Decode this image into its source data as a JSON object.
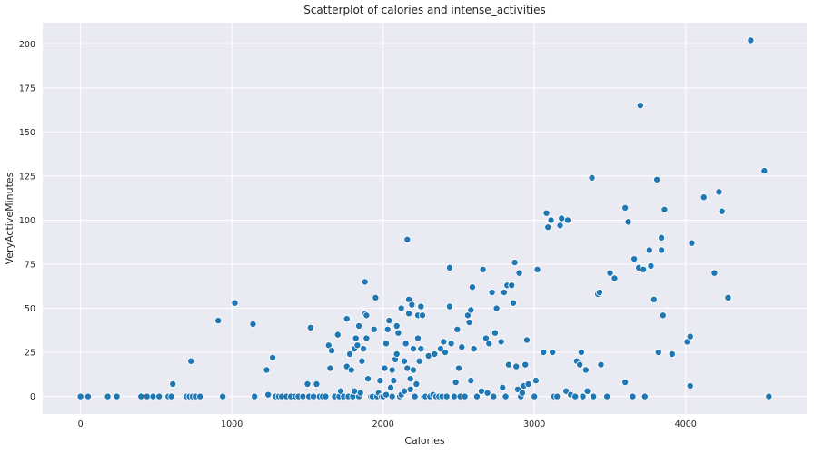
{
  "chart_data": {
    "type": "scatter",
    "title": "Scatterplot of calories and intense_activities",
    "xlabel": "Calories",
    "ylabel": "VeryActiveMinutes",
    "xlim": [
      -250,
      4800
    ],
    "ylim": [
      -10,
      212
    ],
    "x_ticks": [
      0,
      1000,
      2000,
      3000,
      4000
    ],
    "y_ticks": [
      0,
      25,
      50,
      75,
      100,
      125,
      150,
      175,
      200
    ],
    "grid": true,
    "style": {
      "background": "#EAEAF2",
      "grid_color": "#FFFFFF",
      "marker_color": "#1F77B4",
      "marker_edge": "#FFFFFF"
    },
    "points": [
      [
        0,
        0
      ],
      [
        50,
        0
      ],
      [
        180,
        0
      ],
      [
        240,
        0
      ],
      [
        400,
        0
      ],
      [
        440,
        0
      ],
      [
        480,
        0
      ],
      [
        520,
        0
      ],
      [
        580,
        0
      ],
      [
        600,
        0
      ],
      [
        610,
        7
      ],
      [
        700,
        0
      ],
      [
        720,
        0
      ],
      [
        740,
        0
      ],
      [
        760,
        0
      ],
      [
        790,
        0
      ],
      [
        730,
        20
      ],
      [
        910,
        43
      ],
      [
        940,
        0
      ],
      [
        1020,
        53
      ],
      [
        1140,
        41
      ],
      [
        1150,
        0
      ],
      [
        1230,
        15
      ],
      [
        1240,
        1
      ],
      [
        1270,
        22
      ],
      [
        1290,
        0
      ],
      [
        1310,
        0
      ],
      [
        1330,
        0
      ],
      [
        1360,
        0
      ],
      [
        1390,
        0
      ],
      [
        1420,
        0
      ],
      [
        1440,
        0
      ],
      [
        1470,
        0
      ],
      [
        1500,
        7
      ],
      [
        1510,
        0
      ],
      [
        1520,
        39
      ],
      [
        1540,
        0
      ],
      [
        1560,
        7
      ],
      [
        1580,
        0
      ],
      [
        1600,
        0
      ],
      [
        1620,
        0
      ],
      [
        1640,
        29
      ],
      [
        1650,
        16
      ],
      [
        1660,
        26
      ],
      [
        1680,
        0
      ],
      [
        1700,
        35
      ],
      [
        1710,
        0
      ],
      [
        1720,
        3
      ],
      [
        1740,
        0
      ],
      [
        1760,
        17
      ],
      [
        1760,
        44
      ],
      [
        1770,
        0
      ],
      [
        1780,
        24
      ],
      [
        1790,
        15
      ],
      [
        1800,
        0
      ],
      [
        1810,
        3
      ],
      [
        1810,
        27
      ],
      [
        1820,
        33
      ],
      [
        1830,
        29
      ],
      [
        1840,
        0
      ],
      [
        1840,
        40
      ],
      [
        1850,
        2
      ],
      [
        1860,
        20
      ],
      [
        1870,
        27
      ],
      [
        1880,
        65
      ],
      [
        1880,
        47
      ],
      [
        1890,
        46
      ],
      [
        1890,
        33
      ],
      [
        1900,
        10
      ],
      [
        1920,
        0
      ],
      [
        1930,
        0
      ],
      [
        1940,
        38
      ],
      [
        1950,
        56
      ],
      [
        1960,
        0
      ],
      [
        1970,
        2
      ],
      [
        1980,
        9
      ],
      [
        1990,
        0
      ],
      [
        2000,
        0
      ],
      [
        2010,
        16
      ],
      [
        2020,
        1
      ],
      [
        2020,
        30
      ],
      [
        2030,
        38
      ],
      [
        2040,
        43
      ],
      [
        2050,
        5
      ],
      [
        2060,
        0
      ],
      [
        2060,
        15
      ],
      [
        2070,
        9
      ],
      [
        2080,
        21
      ],
      [
        2090,
        24
      ],
      [
        2090,
        40
      ],
      [
        2100,
        36
      ],
      [
        2110,
        0
      ],
      [
        2120,
        1
      ],
      [
        2120,
        50
      ],
      [
        2140,
        3
      ],
      [
        2140,
        20
      ],
      [
        2150,
        30
      ],
      [
        2160,
        89
      ],
      [
        2160,
        16
      ],
      [
        2170,
        47
      ],
      [
        2170,
        55
      ],
      [
        2180,
        10
      ],
      [
        2180,
        4
      ],
      [
        2190,
        52
      ],
      [
        2200,
        27
      ],
      [
        2200,
        15
      ],
      [
        2210,
        0
      ],
      [
        2220,
        7
      ],
      [
        2230,
        46
      ],
      [
        2230,
        33
      ],
      [
        2240,
        20
      ],
      [
        2250,
        27
      ],
      [
        2250,
        51
      ],
      [
        2260,
        46
      ],
      [
        2270,
        0
      ],
      [
        2280,
        0
      ],
      [
        2300,
        23
      ],
      [
        2310,
        0
      ],
      [
        2330,
        1
      ],
      [
        2340,
        24
      ],
      [
        2350,
        0
      ],
      [
        2370,
        0
      ],
      [
        2380,
        27
      ],
      [
        2390,
        0
      ],
      [
        2400,
        31
      ],
      [
        2410,
        25
      ],
      [
        2420,
        0
      ],
      [
        2440,
        51
      ],
      [
        2440,
        73
      ],
      [
        2450,
        30
      ],
      [
        2470,
        0
      ],
      [
        2480,
        8
      ],
      [
        2490,
        38
      ],
      [
        2500,
        16
      ],
      [
        2510,
        0
      ],
      [
        2520,
        28
      ],
      [
        2540,
        0
      ],
      [
        2560,
        46
      ],
      [
        2570,
        42
      ],
      [
        2580,
        49
      ],
      [
        2590,
        62
      ],
      [
        2580,
        9
      ],
      [
        2600,
        27
      ],
      [
        2620,
        0
      ],
      [
        2650,
        3
      ],
      [
        2660,
        72
      ],
      [
        2680,
        33
      ],
      [
        2690,
        2
      ],
      [
        2700,
        30
      ],
      [
        2720,
        59
      ],
      [
        2730,
        0
      ],
      [
        2740,
        36
      ],
      [
        2750,
        50
      ],
      [
        2780,
        31
      ],
      [
        2790,
        5
      ],
      [
        2800,
        59
      ],
      [
        2810,
        0
      ],
      [
        2820,
        63
      ],
      [
        2830,
        18
      ],
      [
        2850,
        63
      ],
      [
        2860,
        53
      ],
      [
        2870,
        76
      ],
      [
        2880,
        17
      ],
      [
        2890,
        4
      ],
      [
        2900,
        70
      ],
      [
        2910,
        0
      ],
      [
        2920,
        2
      ],
      [
        2930,
        6
      ],
      [
        2940,
        18
      ],
      [
        2950,
        32
      ],
      [
        2960,
        7
      ],
      [
        3000,
        0
      ],
      [
        3010,
        9
      ],
      [
        3020,
        72
      ],
      [
        3060,
        25
      ],
      [
        3080,
        104
      ],
      [
        3090,
        96
      ],
      [
        3110,
        100
      ],
      [
        3120,
        25
      ],
      [
        3130,
        0
      ],
      [
        3150,
        0
      ],
      [
        3170,
        97
      ],
      [
        3180,
        101
      ],
      [
        3210,
        3
      ],
      [
        3220,
        100
      ],
      [
        3240,
        1
      ],
      [
        3270,
        0
      ],
      [
        3280,
        20
      ],
      [
        3300,
        18
      ],
      [
        3310,
        25
      ],
      [
        3320,
        0
      ],
      [
        3340,
        15
      ],
      [
        3350,
        3
      ],
      [
        3380,
        124
      ],
      [
        3390,
        0
      ],
      [
        3420,
        58
      ],
      [
        3430,
        59
      ],
      [
        3440,
        18
      ],
      [
        3480,
        0
      ],
      [
        3500,
        70
      ],
      [
        3530,
        67
      ],
      [
        3600,
        107
      ],
      [
        3600,
        8
      ],
      [
        3620,
        99
      ],
      [
        3650,
        0
      ],
      [
        3660,
        78
      ],
      [
        3690,
        73
      ],
      [
        3700,
        165
      ],
      [
        3720,
        72
      ],
      [
        3730,
        0
      ],
      [
        3760,
        83
      ],
      [
        3770,
        74
      ],
      [
        3790,
        55
      ],
      [
        3810,
        123
      ],
      [
        3820,
        25
      ],
      [
        3840,
        83
      ],
      [
        3840,
        90
      ],
      [
        3860,
        106
      ],
      [
        3850,
        46
      ],
      [
        3910,
        24
      ],
      [
        4010,
        31
      ],
      [
        4030,
        34
      ],
      [
        4040,
        87
      ],
      [
        4030,
        6
      ],
      [
        4120,
        113
      ],
      [
        4190,
        70
      ],
      [
        4220,
        116
      ],
      [
        4240,
        105
      ],
      [
        4280,
        56
      ],
      [
        4430,
        202
      ],
      [
        4520,
        128
      ],
      [
        4550,
        0
      ]
    ]
  }
}
